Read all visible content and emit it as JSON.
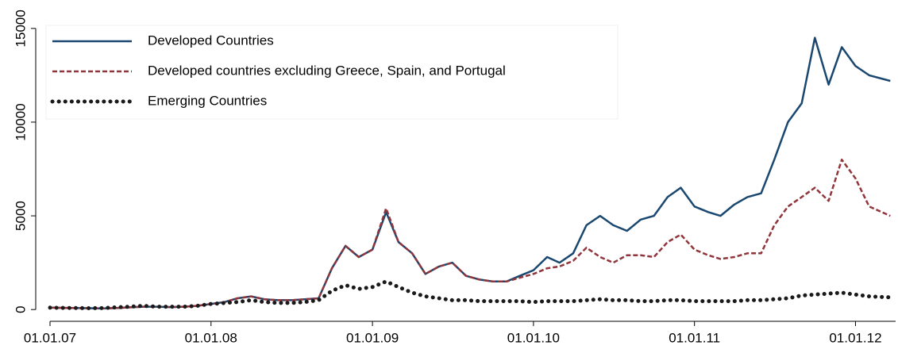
{
  "chart_data": {
    "type": "line",
    "x": [
      "01.01.07",
      "01.02.07",
      "01.03.07",
      "01.04.07",
      "01.05.07",
      "01.06.07",
      "01.07.07",
      "01.08.07",
      "01.09.07",
      "01.10.07",
      "01.11.07",
      "01.12.07",
      "01.01.08",
      "01.02.08",
      "01.03.08",
      "01.04.08",
      "01.05.08",
      "01.06.08",
      "01.07.08",
      "01.08.08",
      "01.09.08",
      "01.10.08",
      "01.11.08",
      "01.12.08",
      "01.01.09",
      "01.02.09",
      "01.03.09",
      "01.04.09",
      "01.05.09",
      "01.06.09",
      "01.07.09",
      "01.08.09",
      "01.09.09",
      "01.10.09",
      "01.11.09",
      "01.12.09",
      "01.01.10",
      "01.02.10",
      "01.03.10",
      "01.04.10",
      "01.05.10",
      "01.06.10",
      "01.07.10",
      "01.08.10",
      "01.09.10",
      "01.10.10",
      "01.11.10",
      "01.12.10",
      "01.01.11",
      "01.02.11",
      "01.03.11",
      "01.04.11",
      "01.05.11",
      "01.06.11",
      "01.07.11",
      "01.08.11",
      "01.09.11",
      "01.10.11",
      "01.11.11",
      "01.12.11",
      "01.01.12",
      "01.02.12",
      "20.03.12"
    ],
    "series": [
      {
        "name": "Developed Countries",
        "color": "#1a476f",
        "style": "solid",
        "values": [
          100,
          90,
          80,
          70,
          60,
          80,
          120,
          150,
          150,
          130,
          150,
          200,
          300,
          400,
          600,
          700,
          550,
          500,
          500,
          550,
          600,
          2200,
          3400,
          2800,
          3200,
          5200,
          3600,
          3000,
          1900,
          2300,
          2500,
          1800,
          1600,
          1500,
          1500,
          1800,
          2100,
          2800,
          2500,
          3000,
          4500,
          5000,
          4500,
          4200,
          4800,
          5000,
          6000,
          6500,
          5500,
          5200,
          5000,
          5600,
          6000,
          6200,
          8000,
          10000,
          11000,
          14500,
          12000,
          14000,
          13000,
          12500,
          12200
        ]
      },
      {
        "name": "Developed countries excluding Greece, Spain, and Portugal",
        "color": "#90353b",
        "style": "dashed",
        "values": [
          100,
          90,
          80,
          70,
          60,
          80,
          120,
          150,
          150,
          130,
          150,
          200,
          300,
          400,
          600,
          700,
          550,
          500,
          500,
          550,
          600,
          2200,
          3400,
          2800,
          3200,
          5400,
          3600,
          3000,
          1900,
          2300,
          2500,
          1800,
          1600,
          1500,
          1500,
          1700,
          1900,
          2200,
          2300,
          2600,
          3300,
          2800,
          2500,
          2900,
          2900,
          2800,
          3600,
          4000,
          3200,
          2900,
          2700,
          2800,
          3000,
          3000,
          4500,
          5500,
          6000,
          6500,
          5800,
          8000,
          7000,
          5500,
          5000
        ]
      },
      {
        "name": "Emerging Countries",
        "color": "#1a1a1a",
        "style": "dotted",
        "values": [
          100,
          90,
          80,
          70,
          80,
          120,
          150,
          200,
          150,
          150,
          150,
          200,
          300,
          350,
          400,
          500,
          400,
          350,
          350,
          400,
          500,
          1000,
          1300,
          1100,
          1200,
          1500,
          1200,
          900,
          700,
          600,
          500,
          500,
          450,
          450,
          450,
          450,
          400,
          450,
          450,
          450,
          500,
          550,
          500,
          500,
          450,
          450,
          500,
          500,
          450,
          450,
          450,
          450,
          500,
          500,
          550,
          600,
          750,
          800,
          850,
          900,
          800,
          700,
          650
        ]
      }
    ],
    "xlim": [
      "01.01.07",
      "01.04.12"
    ],
    "xticks": [
      "01.01.07",
      "01.01.08",
      "01.01.09",
      "01.01.10",
      "01.01.11",
      "01.01.12"
    ],
    "ylim": [
      -500,
      15500
    ],
    "yticks": [
      0,
      5000,
      10000,
      15000
    ],
    "grid": false,
    "legend": "upper left"
  }
}
